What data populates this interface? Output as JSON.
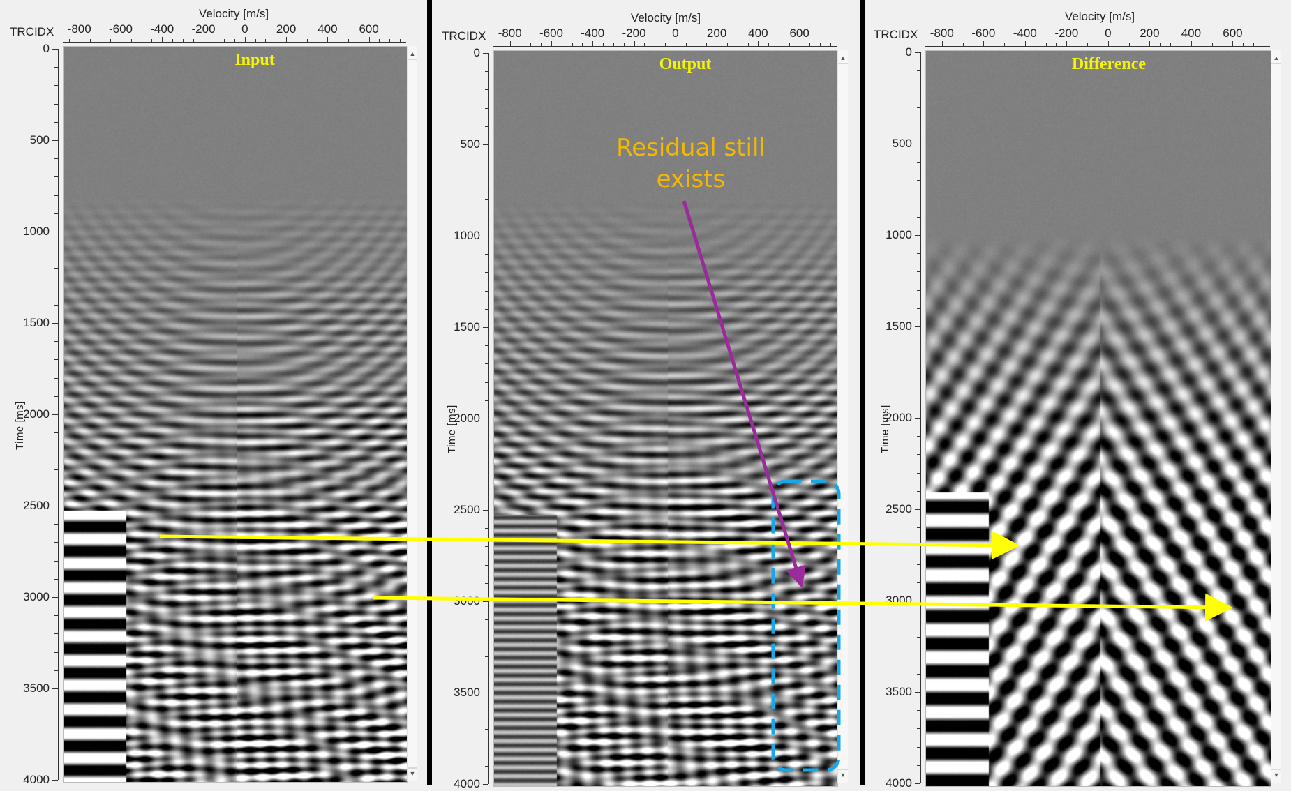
{
  "panels": [
    {
      "id": "input",
      "title": "Input",
      "x_axis_title": "Velocity [m/s]",
      "trace_label": "TRCIDX",
      "y_axis_title": "Time [ms]",
      "x_ticks": [
        "-800",
        "-600",
        "-400",
        "-200",
        "0",
        "200",
        "400",
        "600"
      ],
      "y_ticks": [
        "0",
        "500",
        "1000",
        "1500",
        "2000",
        "2500",
        "3000",
        "3500",
        "4000"
      ]
    },
    {
      "id": "output",
      "title": "Output",
      "x_axis_title": "Velocity [m/s]",
      "trace_label": "TRCIDX",
      "y_axis_title": "Time [ms]",
      "x_ticks": [
        "-800",
        "-600",
        "-400",
        "-200",
        "0",
        "200",
        "400",
        "600"
      ],
      "y_ticks": [
        "0",
        "500",
        "1000",
        "1500",
        "2000",
        "2500",
        "3000",
        "3500",
        "4000"
      ]
    },
    {
      "id": "difference",
      "title": "Difference",
      "x_axis_title": "Velocity [m/s]",
      "trace_label": "TRCIDX",
      "y_axis_title": "Time [ms]",
      "x_ticks": [
        "-800",
        "-600",
        "-400",
        "-200",
        "0",
        "200",
        "400",
        "600"
      ],
      "y_ticks": [
        "0",
        "500",
        "1000",
        "1500",
        "2000",
        "2500",
        "3000",
        "3500",
        "4000"
      ]
    }
  ],
  "annotations": {
    "callout_text_line1": "Residual still",
    "callout_text_line2": "exists",
    "callout_color": "#f5b800",
    "pointer_arrow_color": "#9b2a9b",
    "highlight_box_color": "#1aa7e8",
    "comparison_arrow_color": "#ffff00",
    "comparison_arrows": [
      {
        "from_time_ms": 2700,
        "label": "arrow-1"
      },
      {
        "from_time_ms": 3000,
        "label": "arrow-2"
      }
    ]
  },
  "scrollbar": {
    "up_glyph": "▲",
    "down_glyph": "▼"
  }
}
